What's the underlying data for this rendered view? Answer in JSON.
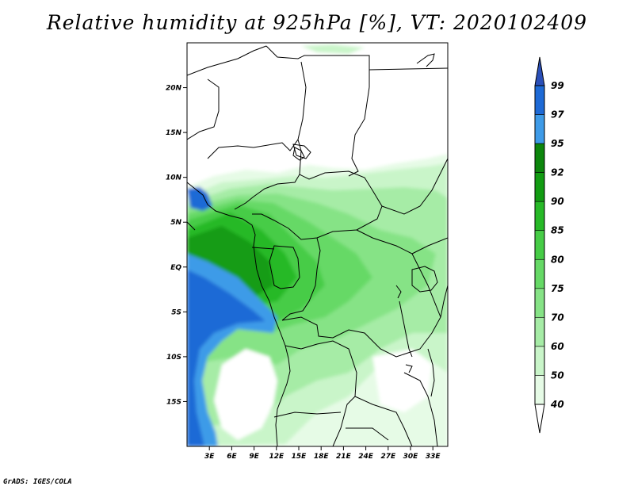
{
  "title": "Relative humidity at 925hPa [%], VT: 2020102409",
  "credit": "GrADS: IGES/COLA",
  "map": {
    "lon_range": [
      0,
      35
    ],
    "lat_range": [
      -20,
      25
    ],
    "lat_ticks": [
      "20N",
      "15N",
      "10N",
      "5N",
      "EQ",
      "5S",
      "10S",
      "15S"
    ],
    "lon_ticks": [
      "3E",
      "6E",
      "9E",
      "12E",
      "15E",
      "18E",
      "21E",
      "24E",
      "27E",
      "30E",
      "33E"
    ]
  },
  "colorbar": {
    "levels": [
      "40",
      "50",
      "60",
      "70",
      "75",
      "80",
      "85",
      "90",
      "92",
      "95",
      "97",
      "99"
    ],
    "colors": [
      "#ffffff",
      "#e6fbe6",
      "#c9f5c9",
      "#a6eca6",
      "#86e386",
      "#66d966",
      "#46cc46",
      "#27b927",
      "#129c12",
      "#1e90e6",
      "#4aa6f0",
      "#1f60c8"
    ],
    "bin_colors": [
      "#e6fbe6",
      "#c9f5c9",
      "#a6eca6",
      "#86e386",
      "#66d966",
      "#46cc46",
      "#27b927",
      "#129c12",
      "#0c860c",
      "#3e9be8",
      "#1e6ad6",
      "#2a4fb8"
    ]
  }
}
